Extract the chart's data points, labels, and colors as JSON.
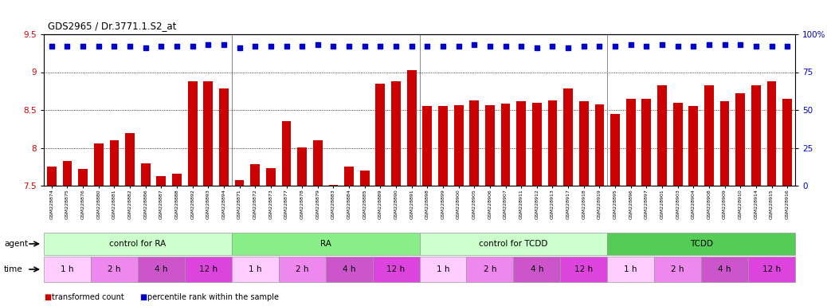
{
  "title": "GDS2965 / Dr.3771.1.S2_at",
  "samples": [
    "GSM228874",
    "GSM228875",
    "GSM228876",
    "GSM228880",
    "GSM228881",
    "GSM228882",
    "GSM228886",
    "GSM228887",
    "GSM228888",
    "GSM228892",
    "GSM228893",
    "GSM228894",
    "GSM228871",
    "GSM228872",
    "GSM228873",
    "GSM228877",
    "GSM228878",
    "GSM228879",
    "GSM228883",
    "GSM228884",
    "GSM228885",
    "GSM228889",
    "GSM228890",
    "GSM228891",
    "GSM228898",
    "GSM228899",
    "GSM228900",
    "GSM228905",
    "GSM228906",
    "GSM228907",
    "GSM228911",
    "GSM228912",
    "GSM228913",
    "GSM228917",
    "GSM228918",
    "GSM228919",
    "GSM228895",
    "GSM228896",
    "GSM228897",
    "GSM228901",
    "GSM228903",
    "GSM228904",
    "GSM228908",
    "GSM228909",
    "GSM228910",
    "GSM228914",
    "GSM228915",
    "GSM228916"
  ],
  "bar_values": [
    7.75,
    7.83,
    7.72,
    8.06,
    8.1,
    8.2,
    7.8,
    7.63,
    7.66,
    8.88,
    8.88,
    8.78,
    7.57,
    7.78,
    7.73,
    8.35,
    8.01,
    8.1,
    7.51,
    7.75,
    7.7,
    8.85,
    8.88,
    9.03,
    8.55,
    8.55,
    8.56,
    8.63,
    8.56,
    8.58,
    8.62,
    8.6,
    8.63,
    8.78,
    8.62,
    8.57,
    8.45,
    8.65,
    8.65,
    8.83,
    8.6,
    8.55,
    8.83,
    8.62,
    8.72,
    8.83,
    8.88,
    8.65
  ],
  "percentile_values": [
    92,
    92,
    92,
    92,
    92,
    92,
    91,
    92,
    92,
    92,
    93,
    93,
    91,
    92,
    92,
    92,
    92,
    93,
    92,
    92,
    92,
    92,
    92,
    92,
    92,
    92,
    92,
    93,
    92,
    92,
    92,
    91,
    92,
    91,
    92,
    92,
    92,
    93,
    92,
    93,
    92,
    92,
    93,
    93,
    93,
    92,
    92,
    92
  ],
  "ylim": [
    7.5,
    9.5
  ],
  "yticks": [
    7.5,
    8.0,
    8.5,
    9.0,
    9.5
  ],
  "bar_color": "#cc0000",
  "percentile_color": "#0000cc",
  "background_color": "#ffffff",
  "agent_groups": [
    {
      "label": "control for RA",
      "start": 0,
      "end": 12,
      "color": "#ccffcc"
    },
    {
      "label": "RA",
      "start": 12,
      "end": 24,
      "color": "#88ee88"
    },
    {
      "label": "control for TCDD",
      "start": 24,
      "end": 36,
      "color": "#ccffcc"
    },
    {
      "label": "TCDD",
      "start": 36,
      "end": 48,
      "color": "#55cc55"
    }
  ],
  "time_groups": [
    {
      "label": "1 h",
      "start": 0,
      "end": 3,
      "color": "#ffccff"
    },
    {
      "label": "2 h",
      "start": 3,
      "end": 6,
      "color": "#ee88ee"
    },
    {
      "label": "4 h",
      "start": 6,
      "end": 9,
      "color": "#cc55cc"
    },
    {
      "label": "12 h",
      "start": 9,
      "end": 12,
      "color": "#dd44dd"
    },
    {
      "label": "1 h",
      "start": 12,
      "end": 15,
      "color": "#ffccff"
    },
    {
      "label": "2 h",
      "start": 15,
      "end": 18,
      "color": "#ee88ee"
    },
    {
      "label": "4 h",
      "start": 18,
      "end": 21,
      "color": "#cc55cc"
    },
    {
      "label": "12 h",
      "start": 21,
      "end": 24,
      "color": "#dd44dd"
    },
    {
      "label": "1 h",
      "start": 24,
      "end": 27,
      "color": "#ffccff"
    },
    {
      "label": "2 h",
      "start": 27,
      "end": 30,
      "color": "#ee88ee"
    },
    {
      "label": "4 h",
      "start": 30,
      "end": 33,
      "color": "#cc55cc"
    },
    {
      "label": "12 h",
      "start": 33,
      "end": 36,
      "color": "#dd44dd"
    },
    {
      "label": "1 h",
      "start": 36,
      "end": 39,
      "color": "#ffccff"
    },
    {
      "label": "2 h",
      "start": 39,
      "end": 42,
      "color": "#ee88ee"
    },
    {
      "label": "4 h",
      "start": 42,
      "end": 45,
      "color": "#cc55cc"
    },
    {
      "label": "12 h",
      "start": 45,
      "end": 48,
      "color": "#dd44dd"
    }
  ]
}
